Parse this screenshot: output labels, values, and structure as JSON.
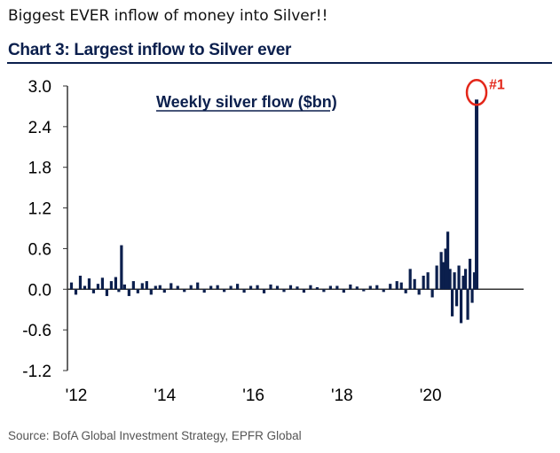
{
  "headline": "Biggest EVER inflow of money into Silver!!",
  "colors": {
    "bars": "#0b1f4d",
    "axis": "#0b1f4d",
    "highlight": "#e32619",
    "title": "#0b1f4d"
  },
  "chart_data": {
    "type": "bar",
    "title": "Chart 3: Largest inflow to Silver ever",
    "inner_label": "Weekly silver flow ($bn)",
    "annotation": "#1",
    "source": "Source: BofA Global Investment Strategy, EPFR Global",
    "ylim": [
      -1.2,
      3.0
    ],
    "y_ticks": [
      3.0,
      2.4,
      1.8,
      1.2,
      0.6,
      0.0,
      -0.6,
      -1.2
    ],
    "y_tick_labels": [
      "3.0",
      "2.4",
      "1.8",
      "1.2",
      "0.6",
      "0.0",
      "-0.6",
      "-1.2"
    ],
    "x_ticks": [
      2012,
      2014,
      2016,
      2018,
      2020
    ],
    "x_tick_labels": [
      "'12",
      "'14",
      "'16",
      "'18",
      "'20"
    ],
    "xlim": [
      2012,
      2021.5
    ],
    "series": [
      {
        "values": [
          [
            2012.05,
            0.1
          ],
          [
            2012.15,
            -0.08
          ],
          [
            2012.25,
            0.2
          ],
          [
            2012.35,
            0.05
          ],
          [
            2012.45,
            0.16
          ],
          [
            2012.55,
            -0.06
          ],
          [
            2012.65,
            0.08
          ],
          [
            2012.75,
            0.17
          ],
          [
            2012.85,
            -0.1
          ],
          [
            2012.95,
            0.12
          ],
          [
            2013.05,
            0.18
          ],
          [
            2013.12,
            -0.04
          ],
          [
            2013.18,
            0.65
          ],
          [
            2013.25,
            0.07
          ],
          [
            2013.35,
            -0.1
          ],
          [
            2013.45,
            0.12
          ],
          [
            2013.55,
            -0.06
          ],
          [
            2013.65,
            0.09
          ],
          [
            2013.75,
            0.12
          ],
          [
            2013.85,
            -0.08
          ],
          [
            2013.95,
            0.05
          ],
          [
            2014.05,
            0.06
          ],
          [
            2014.15,
            -0.05
          ],
          [
            2014.3,
            0.09
          ],
          [
            2014.45,
            0.05
          ],
          [
            2014.6,
            -0.04
          ],
          [
            2014.75,
            0.06
          ],
          [
            2014.9,
            0.1
          ],
          [
            2015.05,
            -0.05
          ],
          [
            2015.2,
            0.05
          ],
          [
            2015.35,
            0.06
          ],
          [
            2015.5,
            -0.04
          ],
          [
            2015.65,
            0.05
          ],
          [
            2015.8,
            0.08
          ],
          [
            2015.95,
            -0.05
          ],
          [
            2016.1,
            0.05
          ],
          [
            2016.25,
            0.06
          ],
          [
            2016.4,
            -0.06
          ],
          [
            2016.55,
            0.07
          ],
          [
            2016.7,
            0.05
          ],
          [
            2016.85,
            -0.04
          ],
          [
            2017.0,
            0.06
          ],
          [
            2017.15,
            0.04
          ],
          [
            2017.3,
            -0.05
          ],
          [
            2017.45,
            0.06
          ],
          [
            2017.6,
            0.03
          ],
          [
            2017.75,
            -0.04
          ],
          [
            2017.9,
            0.05
          ],
          [
            2018.05,
            0.05
          ],
          [
            2018.2,
            -0.05
          ],
          [
            2018.35,
            0.07
          ],
          [
            2018.5,
            0.04
          ],
          [
            2018.65,
            -0.03
          ],
          [
            2018.8,
            0.05
          ],
          [
            2018.95,
            0.06
          ],
          [
            2019.1,
            -0.04
          ],
          [
            2019.25,
            0.08
          ],
          [
            2019.4,
            0.12
          ],
          [
            2019.5,
            0.1
          ],
          [
            2019.6,
            -0.06
          ],
          [
            2019.7,
            0.3
          ],
          [
            2019.8,
            0.15
          ],
          [
            2019.9,
            -0.08
          ],
          [
            2020.0,
            0.2
          ],
          [
            2020.1,
            0.25
          ],
          [
            2020.2,
            -0.12
          ],
          [
            2020.3,
            0.35
          ],
          [
            2020.4,
            0.55
          ],
          [
            2020.45,
            0.4
          ],
          [
            2020.5,
            0.6
          ],
          [
            2020.55,
            0.85
          ],
          [
            2020.6,
            0.3
          ],
          [
            2020.65,
            -0.4
          ],
          [
            2020.7,
            0.25
          ],
          [
            2020.75,
            -0.25
          ],
          [
            2020.8,
            0.35
          ],
          [
            2020.85,
            -0.5
          ],
          [
            2020.9,
            0.2
          ],
          [
            2020.95,
            0.3
          ],
          [
            2021.0,
            -0.45
          ],
          [
            2021.05,
            0.45
          ],
          [
            2021.1,
            -0.2
          ],
          [
            2021.15,
            0.25
          ],
          [
            2021.2,
            2.8
          ]
        ]
      }
    ]
  }
}
